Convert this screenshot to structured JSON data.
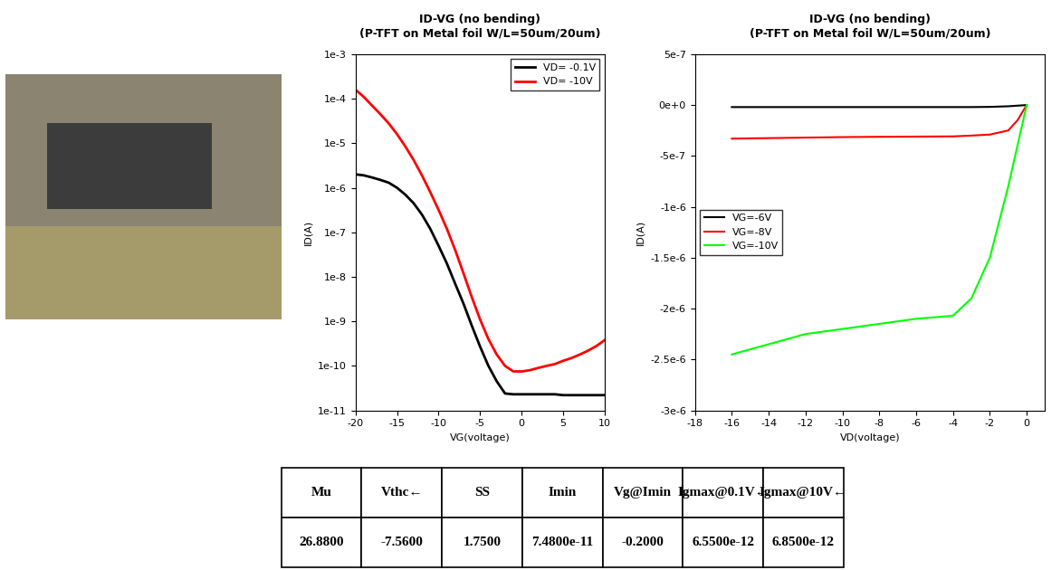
{
  "chart_data": [
    {
      "type": "line",
      "title": "ID-VG (no bending)\n(P-TFT on Metal foil W/L=50um/20um)",
      "x_label": "VG(voltage)",
      "y_label": "ID(A)",
      "log": "y",
      "grid": false,
      "legend": "upper right",
      "xlim": [
        -20,
        10
      ],
      "xticks": [
        -20,
        -15,
        -10,
        -5,
        0,
        5,
        10
      ],
      "ylim": [
        1e-11,
        0.001
      ],
      "yticks": [
        {
          "value": 1e-11,
          "label": "1e-11"
        },
        {
          "value": 1e-10,
          "label": "1e-10"
        },
        {
          "value": 1e-09,
          "label": "1e-9"
        },
        {
          "value": 1e-08,
          "label": "1e-8"
        },
        {
          "value": 1e-07,
          "label": "1e-7"
        },
        {
          "value": 1e-06,
          "label": "1e-6"
        },
        {
          "value": 1e-05,
          "label": "1e-5"
        },
        {
          "value": 0.0001,
          "label": "1e-4"
        },
        {
          "value": 0.001,
          "label": "1e-3"
        }
      ],
      "x": [
        -20,
        -19,
        -18,
        -17,
        -16,
        -15,
        -14,
        -13,
        -12,
        -11,
        -10,
        -9,
        -8,
        -7,
        -6,
        -5,
        -4,
        -3,
        -2,
        -1,
        0,
        1,
        2,
        3,
        4,
        5,
        6,
        7,
        8,
        9,
        10
      ],
      "series": [
        {
          "name": "VD= -0.1V",
          "color": "#000000",
          "values": [
            2e-06,
            1.9e-06,
            1.7e-06,
            1.5e-06,
            1.3e-06,
            1e-06,
            7e-07,
            4.5e-07,
            2.5e-07,
            1.2e-07,
            5e-08,
            2e-08,
            7e-09,
            2.5e-09,
            8e-10,
            2.7e-10,
            1e-10,
            4.5e-11,
            2.4e-11,
            2.3e-11,
            2.3e-11,
            2.3e-11,
            2.3e-11,
            2.3e-11,
            2.3e-11,
            2.2e-11,
            2.2e-11,
            2.2e-11,
            2.2e-11,
            2.2e-11,
            2.2e-11
          ]
        },
        {
          "name": "VD= -10V",
          "color": "#ff0000",
          "values": [
            0.00016,
            0.00011,
            7e-05,
            4.5e-05,
            2.8e-05,
            1.6e-05,
            8.5e-06,
            4.2e-06,
            1.9e-06,
            8e-07,
            3.2e-07,
            1.2e-07,
            4e-08,
            1.2e-08,
            3.5e-09,
            1.1e-09,
            4e-10,
            1.8e-10,
            1e-10,
            7.5e-11,
            7.5e-11,
            8e-11,
            9e-11,
            1e-10,
            1.1e-10,
            1.3e-10,
            1.5e-10,
            1.8e-10,
            2.2e-10,
            2.8e-10,
            3.8e-10
          ]
        }
      ]
    },
    {
      "type": "line",
      "title": "ID-VG (no bending)\n(P-TFT on Metal foil W/L=50um/20um)",
      "x_label": "VD(voltage)",
      "y_label": "ID(A)",
      "grid": false,
      "legend": "center left",
      "xlim": [
        -18,
        1
      ],
      "xticks": [
        -18,
        -16,
        -14,
        -12,
        -10,
        -8,
        -6,
        -4,
        -2,
        0
      ],
      "ylim": [
        -3e-06,
        5e-07
      ],
      "yticks": [
        {
          "value": -3e-06,
          "label": "-3e-6"
        },
        {
          "value": -2.5e-06,
          "label": "-2.5e-6"
        },
        {
          "value": -2e-06,
          "label": "-2e-6"
        },
        {
          "value": -1.5e-06,
          "label": "-1.5e-6"
        },
        {
          "value": -1e-06,
          "label": "-1e-6"
        },
        {
          "value": -5e-07,
          "label": "-5e-7"
        },
        {
          "value": 0,
          "label": "0e+0"
        },
        {
          "value": 5e-07,
          "label": "5e-7"
        }
      ],
      "x": [
        -16,
        -14,
        -12,
        -10,
        -8,
        -6,
        -4,
        -3,
        -2,
        -1,
        -0.5,
        0
      ],
      "series": [
        {
          "name": "VG=-6V",
          "color": "#000000",
          "values": [
            -2e-08,
            -2e-08,
            -2e-08,
            -2e-08,
            -2e-08,
            -2e-08,
            -2e-08,
            -2e-08,
            -1.8e-08,
            -1.2e-08,
            -6e-09,
            0
          ]
        },
        {
          "name": "VG=-8V",
          "color": "#ff0000",
          "values": [
            -3.3e-07,
            -3.25e-07,
            -3.2e-07,
            -3.15e-07,
            -3.12e-07,
            -3.1e-07,
            -3.08e-07,
            -3e-07,
            -2.9e-07,
            -2.5e-07,
            -1.5e-07,
            0
          ]
        },
        {
          "name": "VG=-10V",
          "color": "#00ff00",
          "values": [
            -2.45e-06,
            -2.35e-06,
            -2.25e-06,
            -2.2e-06,
            -2.15e-06,
            -2.1e-06,
            -2.07e-06,
            -1.9e-06,
            -1.5e-06,
            -8e-07,
            -4e-07,
            0
          ]
        }
      ]
    }
  ],
  "table": {
    "header": [
      "Mu",
      "Vthc←",
      "SS",
      "Imin",
      "Vg@Imin",
      "Igmax@0.1V←",
      "Igmax@10V←"
    ],
    "rows": [
      [
        "26.8800",
        "-7.5600",
        "1.7500",
        "7.4800e-11",
        "-0.2000",
        "6.5500e-12",
        "6.8500e-12"
      ]
    ]
  }
}
